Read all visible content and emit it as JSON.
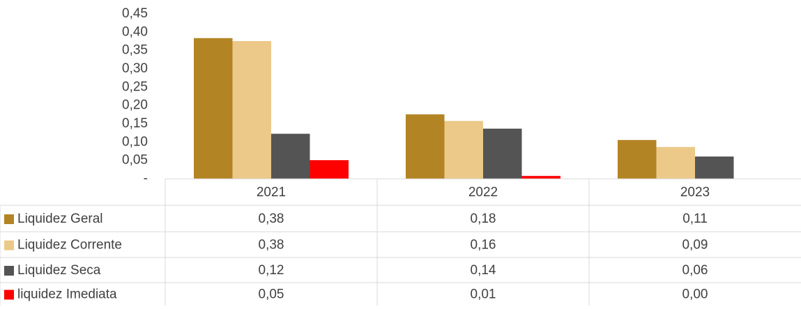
{
  "chart_data": {
    "type": "bar",
    "categories": [
      "2021",
      "2022",
      "2023"
    ],
    "series": [
      {
        "name": "Liquidez Geral",
        "color": "#b38424",
        "values": [
          0.384,
          0.176,
          0.106
        ],
        "value_labels": [
          "0,38",
          "0,18",
          "0,11"
        ]
      },
      {
        "name": "Liquidez Corrente",
        "color": "#ecc988",
        "values": [
          0.376,
          0.158,
          0.087
        ],
        "value_labels": [
          "0,38",
          "0,16",
          "0,09"
        ]
      },
      {
        "name": "Liquidez Seca",
        "color": "#545454",
        "values": [
          0.123,
          0.137,
          0.061
        ],
        "value_labels": [
          "0,12",
          "0,14",
          "0,06"
        ]
      },
      {
        "name": "liquidez Imediata",
        "color": "#ff0000",
        "values": [
          0.051,
          0.008,
          0
        ],
        "value_labels": [
          "0,05",
          "0,01",
          "0,00"
        ]
      }
    ],
    "ylim": [
      0,
      0.45
    ],
    "yticks": [
      {
        "value": 0,
        "label": "-"
      },
      {
        "value": 0.05,
        "label": "0,05"
      },
      {
        "value": 0.1,
        "label": "0,10"
      },
      {
        "value": 0.15,
        "label": "0,15"
      },
      {
        "value": 0.2,
        "label": "0,20"
      },
      {
        "value": 0.25,
        "label": "0,25"
      },
      {
        "value": 0.3,
        "label": "0,30"
      },
      {
        "value": 0.35,
        "label": "0,35"
      },
      {
        "value": 0.4,
        "label": "0,40"
      },
      {
        "value": 0.45,
        "label": "0,45"
      }
    ],
    "grid": false
  }
}
